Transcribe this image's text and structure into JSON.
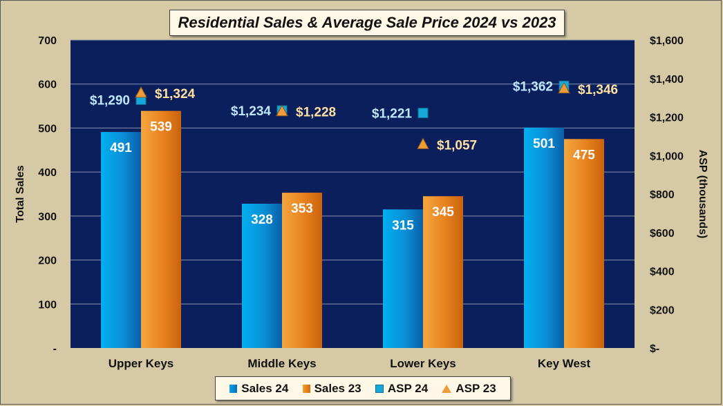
{
  "chart_data": {
    "type": "bar",
    "title": "Residential Sales & Average Sale Price 2024 vs 2023",
    "categories": [
      "Upper Keys",
      "Middle Keys",
      "Lower Keys",
      "Key West"
    ],
    "ylabel": "Total Sales",
    "y2label": "ASP (thousands)",
    "ylim": [
      0,
      700
    ],
    "y2lim": [
      0,
      1600
    ],
    "yticks": [
      "-",
      "100",
      "200",
      "300",
      "400",
      "500",
      "600",
      "700"
    ],
    "y2ticks": [
      "$-",
      "$200",
      "$400",
      "$600",
      "$800",
      "$1,000",
      "$1,200",
      "$1,400",
      "$1,600"
    ],
    "grid": true,
    "legend_position": "bottom",
    "bar_series": [
      {
        "name": "Sales 24",
        "values": [
          491,
          328,
          315,
          501
        ],
        "labels": [
          "491",
          "328",
          "315",
          "501"
        ],
        "color": "#0a8fd6"
      },
      {
        "name": "Sales 23",
        "values": [
          539,
          353,
          345,
          475
        ],
        "labels": [
          "539",
          "353",
          "345",
          "475"
        ],
        "color": "#e8821e"
      }
    ],
    "marker_series": [
      {
        "name": "ASP 24",
        "values": [
          1290,
          1234,
          1221,
          1362
        ],
        "labels": [
          "$1,290",
          "$1,234",
          "$1,221",
          "$1,362"
        ],
        "marker": "square",
        "color": "#15a8d8",
        "label_color": "#bfe6ff"
      },
      {
        "name": "ASP 23",
        "values": [
          1324,
          1228,
          1057,
          1346
        ],
        "labels": [
          "$1,324",
          "$1,228",
          "$1,057",
          "$1,346"
        ],
        "marker": "triangle",
        "color": "#f09a3a",
        "label_color": "#ffe0a0"
      }
    ],
    "colors": {
      "plot_bg": "#0a1f5c",
      "background": "#d6c9a6",
      "gridline": "#8a93b0"
    }
  },
  "legend": {
    "sales24": "Sales 24",
    "sales23": "Sales 23",
    "asp24": "ASP 24",
    "asp23": "ASP 23"
  }
}
